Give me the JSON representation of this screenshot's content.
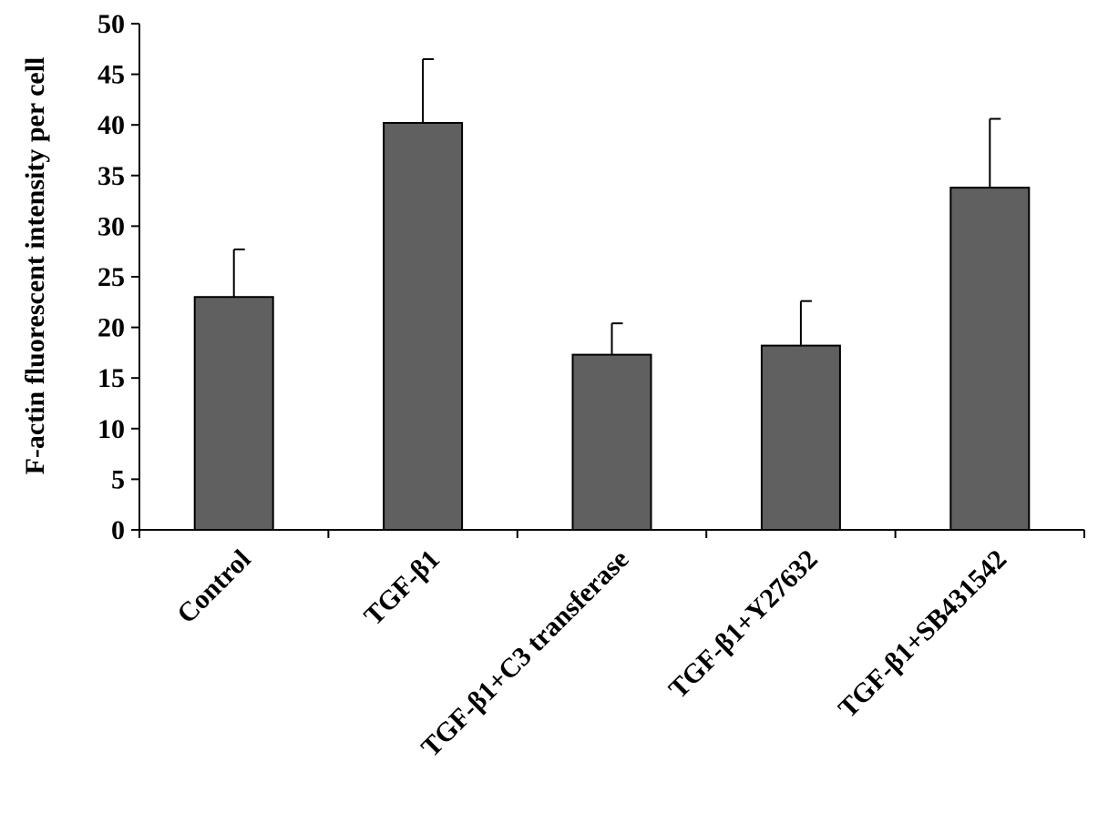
{
  "chart_data": {
    "type": "bar",
    "title": "",
    "xlabel": "",
    "ylabel": "F-actin fluorescent intensity per cell",
    "ylim": [
      0,
      50
    ],
    "yticks": [
      "0",
      "5",
      "10",
      "15",
      "20",
      "25",
      "30",
      "35",
      "40",
      "45",
      "50"
    ],
    "categories": [
      "Control",
      "TGF-β1",
      "TGF-β1+C3 transferase",
      "TGF-β1+Y27632",
      "TGF-β1+SB431542"
    ],
    "values": [
      23.0,
      40.2,
      17.3,
      18.2,
      33.8
    ],
    "errors": [
      4.7,
      6.3,
      3.1,
      4.4,
      6.8
    ],
    "grid": false,
    "legend": "none",
    "colors": {
      "bar": "#606060",
      "bar_edge": "#000000",
      "axis": "#000000"
    }
  }
}
